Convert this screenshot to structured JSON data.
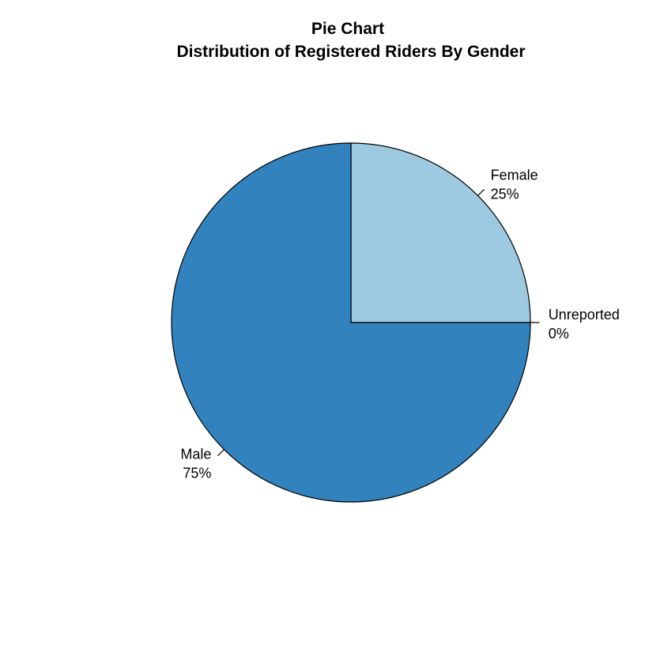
{
  "chart_data": {
    "type": "pie",
    "title": "Pie Chart",
    "subtitle": "Distribution of Registered Riders By Gender",
    "slices": [
      {
        "label": "Unreported",
        "value": 0,
        "percent_label": "0%",
        "color": "#DEEBF7"
      },
      {
        "label": "Female",
        "value": 25,
        "percent_label": "25%",
        "color": "#9ECAE1"
      },
      {
        "label": "Male",
        "value": 75,
        "percent_label": "75%",
        "color": "#3182BD"
      }
    ],
    "start_direction": "3 o'clock",
    "slice_order": "counter-clockwise",
    "outline_color": "#000000"
  }
}
